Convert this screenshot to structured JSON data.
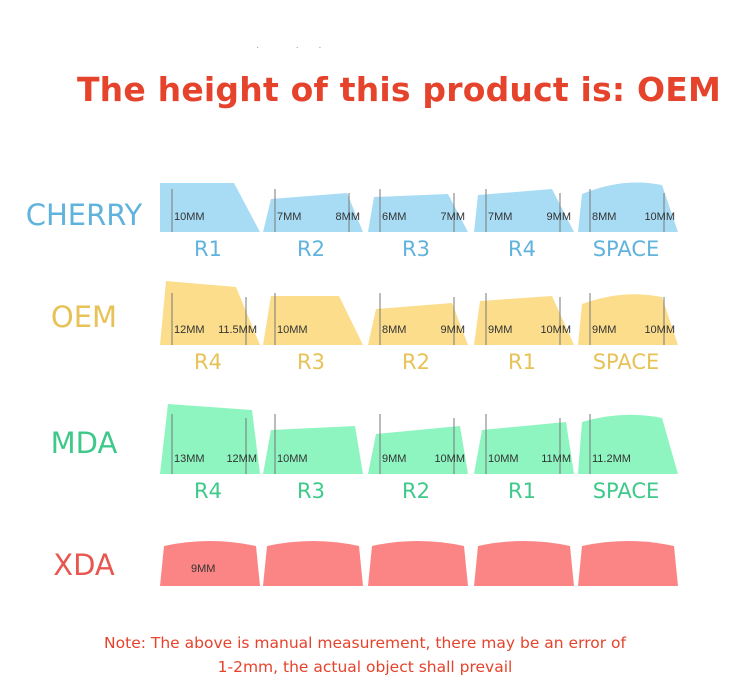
{
  "title": "The height of this product is: OEM",
  "note_line1": "Note: The above is manual measurement, there may be an error of",
  "note_line2": "1-2mm, the actual object shall prevail",
  "colors": {
    "title": "#e5432b",
    "cherry_fill": "#a8dcf5",
    "cherry_text": "#5fb3dc",
    "oem_fill": "#fbdd8c",
    "oem_text": "#e6c257",
    "mda_fill": "#8ef5c0",
    "mda_text": "#3ec98a",
    "xda_fill": "#fb8585",
    "xda_text": "#e8574f"
  },
  "profiles": [
    {
      "name": "CHERRY",
      "keys": [
        {
          "row": "R1",
          "m1": "10MM",
          "m2": ""
        },
        {
          "row": "R2",
          "m1": "7MM",
          "m2": "8MM"
        },
        {
          "row": "R3",
          "m1": "6MM",
          "m2": "7MM"
        },
        {
          "row": "R4",
          "m1": "7MM",
          "m2": "9MM"
        },
        {
          "row": "SPACE",
          "m1": "8MM",
          "m2": "10MM"
        }
      ]
    },
    {
      "name": "OEM",
      "keys": [
        {
          "row": "R4",
          "m1": "12MM",
          "m2": "11.5MM"
        },
        {
          "row": "R3",
          "m1": "10MM",
          "m2": ""
        },
        {
          "row": "R2",
          "m1": "8MM",
          "m2": "9MM"
        },
        {
          "row": "R1",
          "m1": "9MM",
          "m2": "10MM"
        },
        {
          "row": "SPACE",
          "m1": "9MM",
          "m2": "10MM"
        }
      ]
    },
    {
      "name": "MDA",
      "keys": [
        {
          "row": "R4",
          "m1": "13MM",
          "m2": "12MM"
        },
        {
          "row": "R3",
          "m1": "10MM",
          "m2": ""
        },
        {
          "row": "R2",
          "m1": "9MM",
          "m2": "10MM"
        },
        {
          "row": "R1",
          "m1": "10MM",
          "m2": "11MM"
        },
        {
          "row": "SPACE",
          "m1": "11.2MM",
          "m2": ""
        }
      ]
    },
    {
      "name": "XDA",
      "keys": [
        {
          "row": "",
          "m1": "9MM",
          "m2": ""
        },
        {
          "row": "",
          "m1": "",
          "m2": ""
        },
        {
          "row": "",
          "m1": "",
          "m2": ""
        },
        {
          "row": "",
          "m1": "",
          "m2": ""
        },
        {
          "row": "",
          "m1": "",
          "m2": ""
        }
      ]
    }
  ]
}
